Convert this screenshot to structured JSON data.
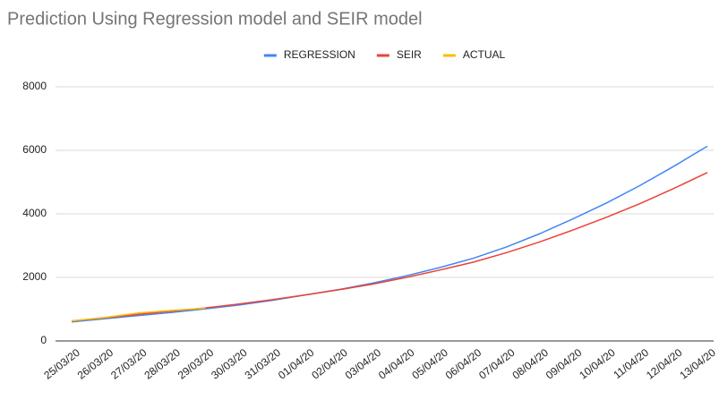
{
  "chart_data": {
    "type": "line",
    "title": "Prediction Using Regression model and SEIR model",
    "categories": [
      "25/03/20",
      "26/03/20",
      "27/03/20",
      "28/03/20",
      "29/03/20",
      "30/03/20",
      "31/03/20",
      "01/04/20",
      "02/04/20",
      "03/04/20",
      "04/04/20",
      "05/04/20",
      "06/04/20",
      "07/04/20",
      "08/04/20",
      "09/04/20",
      "10/04/20",
      "11/04/20",
      "12/04/20",
      "13/04/20"
    ],
    "series": [
      {
        "name": "REGRESSION",
        "color": "#4285f4",
        "values": [
          600,
          700,
          800,
          900,
          1010,
          1130,
          1280,
          1450,
          1620,
          1820,
          2050,
          2310,
          2600,
          2960,
          3380,
          3850,
          4350,
          4900,
          5500,
          6130
        ]
      },
      {
        "name": "SEIR",
        "color": "#ea4335",
        "values": [
          630,
          730,
          840,
          940,
          1040,
          1160,
          1300,
          1450,
          1610,
          1790,
          2000,
          2230,
          2480,
          2780,
          3120,
          3500,
          3900,
          4330,
          4800,
          5300
        ]
      },
      {
        "name": "ACTUAL",
        "color": "#fbbc04",
        "values": [
          630,
          740,
          880,
          960,
          1030,
          null,
          null,
          null,
          null,
          null,
          null,
          null,
          null,
          null,
          null,
          null,
          null,
          null,
          null,
          null
        ]
      }
    ],
    "ylim": [
      0,
      8000
    ],
    "yticks": [
      0,
      2000,
      4000,
      6000,
      8000
    ],
    "grid": true,
    "legend": "top"
  }
}
